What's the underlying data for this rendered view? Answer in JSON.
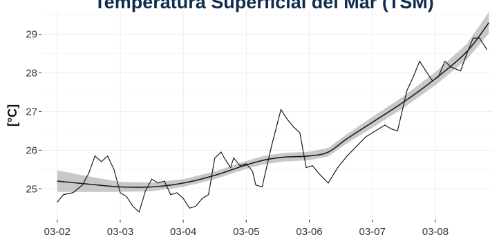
{
  "chart_data": {
    "type": "line",
    "title": "Temperatura Superficial del Mar (TSM)",
    "xlabel": "",
    "ylabel": "[°C]",
    "x_ticks": [
      "03-02",
      "03-03",
      "03-04",
      "03-05",
      "03-06",
      "03-07",
      "03-08"
    ],
    "y_ticks": [
      25,
      26,
      27,
      28,
      29
    ],
    "xlim": [
      1.75,
      8.9
    ],
    "ylim": [
      24.2,
      29.6
    ],
    "grid": true,
    "legend": "none",
    "colors": {
      "series": "#1a1a1a",
      "band": "#c8c8c8",
      "title": "#0f2d4d",
      "grid": "#ededed"
    },
    "series": [
      {
        "kind": "observed",
        "x": [
          2.0,
          2.1,
          2.25,
          2.4,
          2.5,
          2.6,
          2.7,
          2.8,
          2.9,
          3.0,
          3.1,
          3.2,
          3.3,
          3.4,
          3.5,
          3.6,
          3.7,
          3.8,
          3.9,
          4.0,
          4.1,
          4.2,
          4.3,
          4.4,
          4.5,
          4.6,
          4.65,
          4.75,
          4.8,
          4.9,
          5.0,
          5.1,
          5.15,
          5.25,
          5.4,
          5.55,
          5.65,
          5.75,
          5.85,
          5.95,
          6.05,
          6.15,
          6.3,
          6.45,
          6.6,
          6.75,
          6.9,
          7.0,
          7.1,
          7.2,
          7.3,
          7.4,
          7.55,
          7.65,
          7.75,
          7.85,
          7.95,
          8.05,
          8.15,
          8.25,
          8.4,
          8.5,
          8.6,
          8.7,
          8.82
        ],
        "y": [
          24.65,
          24.85,
          24.9,
          25.1,
          25.4,
          25.85,
          25.7,
          25.85,
          25.5,
          24.9,
          24.8,
          24.55,
          24.4,
          24.95,
          25.25,
          25.15,
          25.2,
          24.85,
          24.9,
          24.75,
          24.5,
          24.55,
          24.75,
          24.85,
          25.8,
          25.95,
          25.8,
          25.55,
          25.8,
          25.6,
          25.65,
          25.45,
          25.1,
          25.05,
          26.1,
          27.05,
          26.8,
          26.6,
          26.45,
          25.55,
          25.6,
          25.4,
          25.15,
          25.55,
          25.85,
          26.1,
          26.35,
          26.45,
          26.55,
          26.65,
          26.55,
          26.5,
          27.55,
          27.9,
          28.3,
          28.05,
          27.8,
          27.9,
          28.3,
          28.15,
          28.05,
          28.5,
          28.9,
          28.9,
          28.6
        ]
      },
      {
        "kind": "trend",
        "x": [
          2.0,
          2.5,
          3.0,
          3.5,
          4.0,
          4.5,
          5.0,
          5.3,
          5.6,
          6.0,
          6.3,
          6.6,
          7.0,
          7.5,
          8.0,
          8.5,
          8.85
        ],
        "y": [
          25.2,
          25.12,
          25.05,
          25.05,
          25.15,
          25.35,
          25.62,
          25.75,
          25.82,
          25.85,
          25.95,
          26.3,
          26.72,
          27.25,
          27.85,
          28.55,
          29.3
        ],
        "band": [
          0.28,
          0.2,
          0.13,
          0.11,
          0.1,
          0.1,
          0.1,
          0.11,
          0.11,
          0.11,
          0.11,
          0.12,
          0.14,
          0.15,
          0.17,
          0.2,
          0.28
        ]
      }
    ]
  }
}
